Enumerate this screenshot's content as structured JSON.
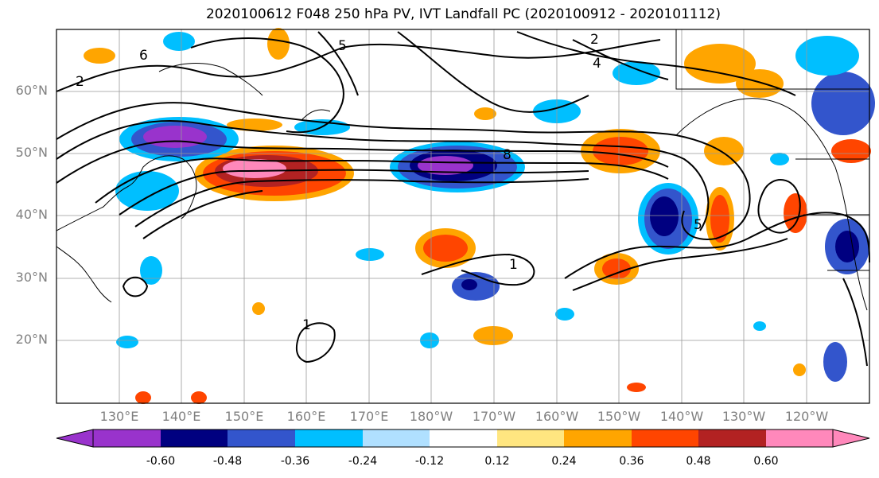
{
  "title": "2020100612 F048 250 hPa PV, IVT Landfall PC (2020100912 - 2020101112)",
  "lat_labels": [
    "60°N",
    "50°N",
    "40°N",
    "30°N",
    "20°N"
  ],
  "lon_labels": [
    "130°E",
    "140°E",
    "150°E",
    "160°E",
    "170°E",
    "180°W",
    "170°W",
    "160°W",
    "150°W",
    "140°W",
    "130°W",
    "120°W"
  ],
  "contour_labels": [
    "2",
    "6",
    "5",
    "4",
    "2",
    "8",
    "1",
    "1",
    "5"
  ],
  "colorbar": {
    "colors": [
      "#9933cc",
      "#000080",
      "#3355cc",
      "#00bfff",
      "#b0e0ff",
      "#ffffff",
      "#ffe680",
      "#ffa500",
      "#ff4500",
      "#b22222",
      "#ff88bb"
    ],
    "tick_labels": [
      "-0.60",
      "-0.48",
      "-0.36",
      "-0.24",
      "-0.12",
      "0.12",
      "0.24",
      "0.36",
      "0.48",
      "0.60"
    ]
  }
}
